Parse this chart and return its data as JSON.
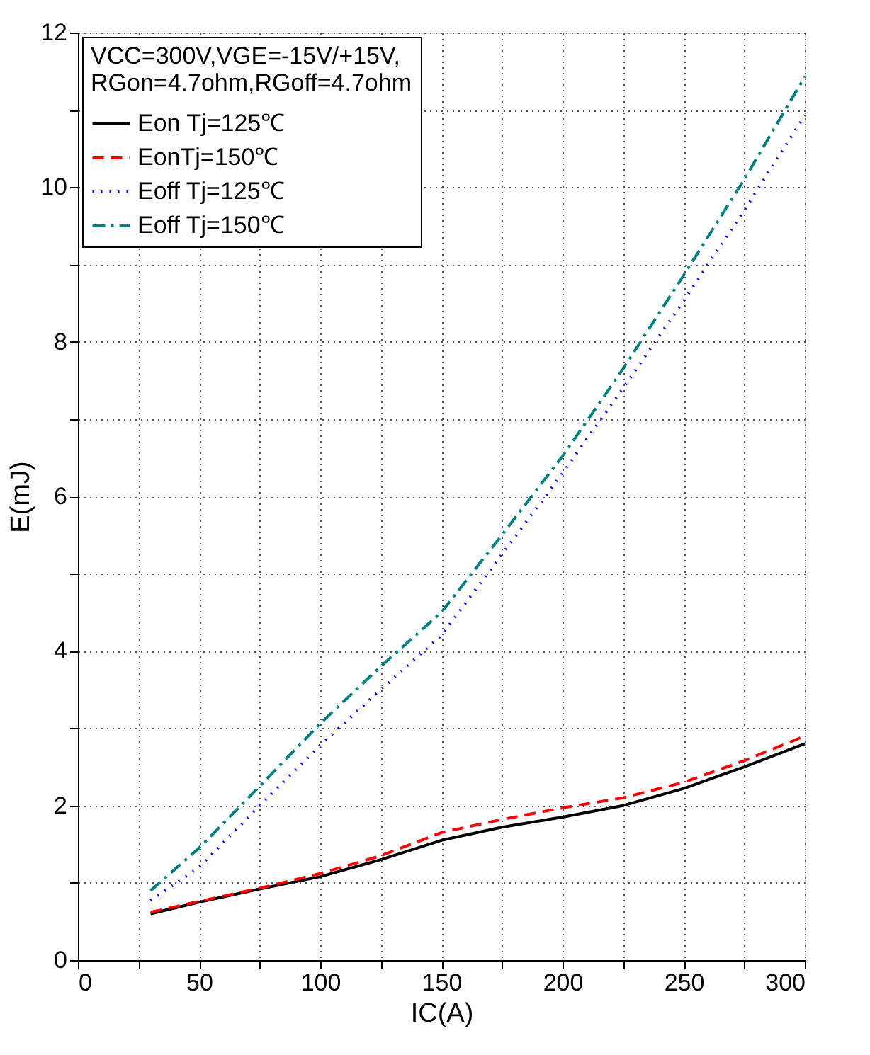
{
  "chart_data": {
    "type": "line",
    "xlabel": "IC(A)",
    "ylabel": "E(mJ)",
    "legend_title": "VCC=300V,VGE=-15V/+15V,\nRGon=4.7ohm,RGoff=4.7ohm",
    "x": [
      30,
      50,
      75,
      100,
      125,
      150,
      175,
      200,
      225,
      250,
      275,
      300
    ],
    "series": [
      {
        "name": "Eon Tj=125℃",
        "color": "#000000",
        "line_style": "solid",
        "values": [
          0.6,
          0.75,
          0.92,
          1.08,
          1.3,
          1.55,
          1.72,
          1.85,
          2.0,
          2.22,
          2.5,
          2.8
        ]
      },
      {
        "name": "EonTj=150℃",
        "color": "#ff0000",
        "line_style": "dashed",
        "values": [
          0.62,
          0.76,
          0.93,
          1.12,
          1.35,
          1.65,
          1.82,
          1.97,
          2.1,
          2.3,
          2.58,
          2.9
        ]
      },
      {
        "name": "Eoff Tj=125℃",
        "color": "#0000ff",
        "line_style": "dotted",
        "values": [
          0.77,
          1.2,
          2.0,
          2.78,
          3.5,
          4.2,
          5.25,
          6.3,
          7.4,
          8.53,
          9.7,
          10.93
        ]
      },
      {
        "name": "Eoff Tj=150℃",
        "color": "#008080",
        "line_style": "dashdot",
        "values": [
          0.9,
          1.45,
          2.25,
          3.06,
          3.8,
          4.5,
          5.5,
          6.52,
          7.65,
          8.86,
          10.1,
          11.43
        ]
      }
    ],
    "xlim": [
      0,
      300
    ],
    "ylim": [
      0,
      12
    ],
    "xticks": [
      0,
      {
        "value": 25,
        "label": null
      },
      50,
      {
        "value": 75,
        "label": null
      },
      100,
      {
        "value": 125,
        "label": null
      },
      150,
      {
        "value": 175,
        "label": null
      },
      200,
      {
        "value": 225,
        "label": null
      },
      250,
      {
        "value": 275,
        "label": null
      },
      300
    ],
    "yticks": [
      0,
      {
        "value": 1,
        "label": null
      },
      2,
      {
        "value": 3,
        "label": null
      },
      4,
      {
        "value": 5,
        "label": null
      },
      6,
      {
        "value": 7,
        "label": null
      },
      8,
      {
        "value": 9,
        "label": null
      },
      10,
      {
        "value": 11,
        "label": null
      },
      12
    ],
    "grid": true,
    "legend": "top left",
    "marker": "none"
  }
}
